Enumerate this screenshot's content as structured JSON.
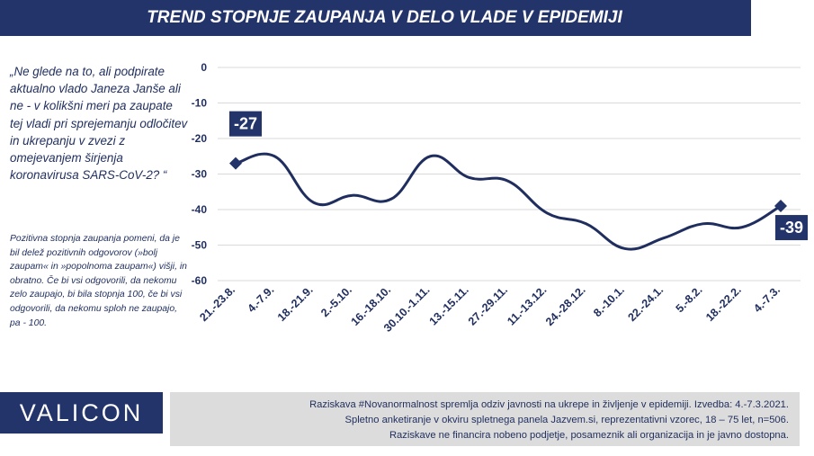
{
  "header": {
    "title": "TREND STOPNJE ZAUPANJA V DELO VLADE V EPIDEMIJI"
  },
  "question": {
    "text": "„Ne glede na to, ali podpirate aktualno vlado Janeza Janše ali ne - v kolikšni meri pa zaupate tej vladi pri sprejemanju odločitev in ukrepanju v zvezi z omejevanjem širjenja koronavirusa SARS-CoV-2? “"
  },
  "note": {
    "text": "Pozitivna stopnja zaupanja pomeni, da je bil delež pozitivnih odgovorov (»bolj zaupam« in »popolnoma zaupam«) višji, in obratno. Če bi vsi odgovorili, da nekomu zelo zaupajo, bi bila stopnja 100, če bi vsi odgovorili, da nekomu sploh ne zaupajo, pa - 100."
  },
  "brand": {
    "name": "VALICON"
  },
  "footer": {
    "line1": "Raziskava #Novanormalnost spremlja odziv javnosti na ukrepe in življenje v epidemiji. Izvedba: 4.-7.3.2021.",
    "line2": "Spletno anketiranje v okviru spletnega panela Jazvem.si, reprezentativni vzorec, 18 – 75 let, n=506.",
    "line3": "Raziskave ne financira nobeno podjetje, posameznik ali organizacija in je javno dostopna."
  },
  "colors": {
    "primary": "#23346b",
    "line": "#1f2e5e",
    "grid": "#d9d9d9",
    "footer_bg": "#dcdcdc"
  },
  "chart_data": {
    "type": "line",
    "categories": [
      "21.-23.8.",
      "4.-7.9.",
      "18.-21.9.",
      "2.-5.10.",
      "16.-18.10.",
      "30.10.-1.11.",
      "13.-15.11.",
      "27.-29.11.",
      "11.-13.12.",
      "24.-28.12.",
      "8.-10.1.",
      "22.-24.1.",
      "5.-8.2.",
      "18.-22.2.",
      "4.-7.3."
    ],
    "values": [
      -27,
      -25,
      -38,
      -36,
      -37,
      -25,
      -31,
      -32,
      -41,
      -44,
      -51,
      -48,
      -44,
      -45,
      -39
    ],
    "y_ticks": [
      "0",
      "-10",
      "-20",
      "-30",
      "-40",
      "-50",
      "-60"
    ],
    "ylim": [
      -60,
      0
    ],
    "grid": true,
    "smooth": true,
    "labels": [
      {
        "index": 0,
        "text": "-27"
      },
      {
        "index": 14,
        "text": "-39"
      }
    ]
  }
}
